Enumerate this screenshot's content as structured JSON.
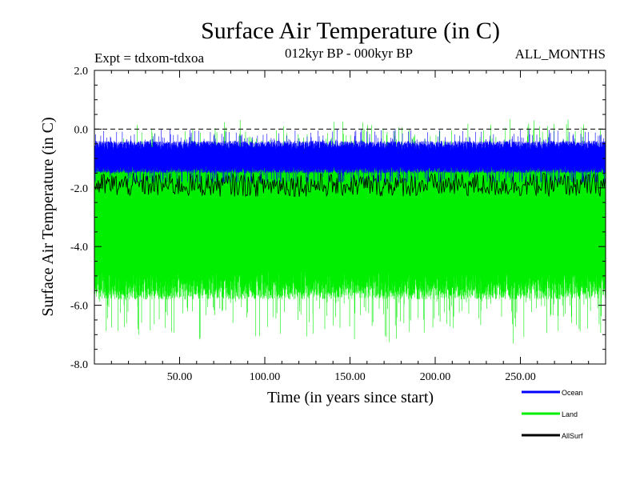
{
  "chart_data": {
    "type": "line",
    "title": "Surface Air Temperature (in C)",
    "subtitle_left": "Expt = tdxom-tdxoa",
    "subtitle_center": "012kyr BP - 000kyr BP",
    "subtitle_right": "ALL_MONTHS",
    "xlabel": "Time (in years since start)",
    "ylabel": "Surface Air Temperature (in C)",
    "xlim": [
      0,
      300
    ],
    "ylim": [
      -8.0,
      2.0
    ],
    "x_tick_labels": [
      "50.00",
      "100.00",
      "150.00",
      "200.00",
      "250.00"
    ],
    "x_ticks": [
      50,
      100,
      150,
      200,
      250
    ],
    "y_tick_labels": [
      "2.0",
      "0.0",
      "-2.0",
      "-4.0",
      "-6.0",
      "-8.0"
    ],
    "y_ticks": [
      2.0,
      0.0,
      -2.0,
      -4.0,
      -6.0,
      -8.0
    ],
    "reference_line": {
      "y": 0.0,
      "style": "dashed"
    },
    "legend_position": "bottom-right",
    "series": [
      {
        "name": "Land",
        "color": "#00ee00",
        "summary": {
          "center": -3.3,
          "typical_low": -5.8,
          "typical_high": -0.6,
          "min": -7.3,
          "max": 0.5
        }
      },
      {
        "name": "Ocean",
        "color": "#0000ff",
        "summary": {
          "center": -1.0,
          "typical_low": -1.5,
          "typical_high": -0.4,
          "min": -1.8,
          "max": 0.0
        }
      },
      {
        "name": "AllSurf",
        "color": "#000000",
        "summary": {
          "center": -1.9,
          "min": -2.3,
          "max": -1.5
        }
      }
    ]
  }
}
